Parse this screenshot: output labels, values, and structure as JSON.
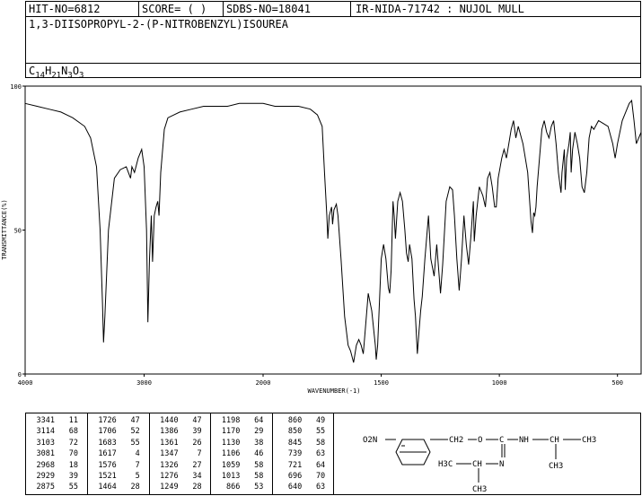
{
  "header": {
    "hit_no": "HIT-NO=6812",
    "score": "SCORE=  (   )",
    "sdbs_no": "SDBS-NO=18041",
    "ir_info": "IR-NIDA-71742 : NUJOL MULL"
  },
  "compound_name": "1,3-DIISOPROPYL-2-(P-NITROBENZYL)ISOUREA",
  "formula": {
    "parts": [
      {
        "t": "C",
        "sub": false
      },
      {
        "t": "14",
        "sub": true
      },
      {
        "t": "H",
        "sub": false
      },
      {
        "t": "21",
        "sub": true
      },
      {
        "t": "N",
        "sub": false
      },
      {
        "t": "3",
        "sub": true
      },
      {
        "t": "O",
        "sub": false
      },
      {
        "t": "3",
        "sub": true
      }
    ]
  },
  "chart_data": {
    "type": "line",
    "xlabel": "WAVENUMBER(-1)",
    "ylabel": "TRANSMITTANCE(%)",
    "xlim": [
      4000,
      400
    ],
    "ylim": [
      0,
      100
    ],
    "x_ticks": [
      4000,
      3000,
      2000,
      1500,
      1000,
      500
    ],
    "y_ticks": [
      0,
      50,
      100
    ],
    "series": [
      {
        "points": [
          [
            4000,
            94
          ],
          [
            3900,
            93
          ],
          [
            3800,
            92
          ],
          [
            3700,
            91
          ],
          [
            3600,
            89
          ],
          [
            3500,
            86
          ],
          [
            3450,
            82
          ],
          [
            3400,
            72
          ],
          [
            3370,
            50
          ],
          [
            3350,
            25
          ],
          [
            3341,
            11
          ],
          [
            3330,
            20
          ],
          [
            3300,
            50
          ],
          [
            3250,
            68
          ],
          [
            3200,
            71
          ],
          [
            3150,
            72
          ],
          [
            3114,
            68
          ],
          [
            3103,
            72
          ],
          [
            3081,
            70
          ],
          [
            3050,
            75
          ],
          [
            3020,
            78
          ],
          [
            3000,
            72
          ],
          [
            2980,
            50
          ],
          [
            2968,
            18
          ],
          [
            2955,
            40
          ],
          [
            2940,
            55
          ],
          [
            2929,
            39
          ],
          [
            2915,
            55
          ],
          [
            2900,
            58
          ],
          [
            2885,
            60
          ],
          [
            2875,
            55
          ],
          [
            2860,
            70
          ],
          [
            2830,
            85
          ],
          [
            2800,
            89
          ],
          [
            2700,
            91
          ],
          [
            2600,
            92
          ],
          [
            2500,
            93
          ],
          [
            2400,
            93
          ],
          [
            2300,
            93
          ],
          [
            2200,
            94
          ],
          [
            2100,
            94
          ],
          [
            2000,
            94
          ],
          [
            1950,
            93
          ],
          [
            1900,
            93
          ],
          [
            1850,
            93
          ],
          [
            1800,
            92
          ],
          [
            1770,
            90
          ],
          [
            1750,
            86
          ],
          [
            1740,
            70
          ],
          [
            1730,
            55
          ],
          [
            1726,
            47
          ],
          [
            1720,
            55
          ],
          [
            1710,
            58
          ],
          [
            1706,
            52
          ],
          [
            1700,
            57
          ],
          [
            1690,
            59
          ],
          [
            1683,
            55
          ],
          [
            1670,
            40
          ],
          [
            1655,
            20
          ],
          [
            1640,
            10
          ],
          [
            1630,
            8
          ],
          [
            1617,
            4
          ],
          [
            1605,
            10
          ],
          [
            1595,
            12
          ],
          [
            1585,
            10
          ],
          [
            1576,
            7
          ],
          [
            1565,
            18
          ],
          [
            1555,
            28
          ],
          [
            1540,
            22
          ],
          [
            1525,
            10
          ],
          [
            1521,
            5
          ],
          [
            1515,
            10
          ],
          [
            1500,
            40
          ],
          [
            1490,
            45
          ],
          [
            1480,
            40
          ],
          [
            1470,
            30
          ],
          [
            1464,
            28
          ],
          [
            1458,
            36
          ],
          [
            1450,
            60
          ],
          [
            1445,
            55
          ],
          [
            1440,
            47
          ],
          [
            1430,
            60
          ],
          [
            1420,
            63
          ],
          [
            1410,
            60
          ],
          [
            1400,
            50
          ],
          [
            1393,
            42
          ],
          [
            1386,
            39
          ],
          [
            1380,
            45
          ],
          [
            1370,
            40
          ],
          [
            1361,
            26
          ],
          [
            1355,
            20
          ],
          [
            1347,
            7
          ],
          [
            1340,
            15
          ],
          [
            1333,
            22
          ],
          [
            1326,
            27
          ],
          [
            1315,
            40
          ],
          [
            1300,
            55
          ],
          [
            1290,
            40
          ],
          [
            1276,
            34
          ],
          [
            1265,
            45
          ],
          [
            1249,
            28
          ],
          [
            1240,
            38
          ],
          [
            1225,
            60
          ],
          [
            1210,
            65
          ],
          [
            1198,
            64
          ],
          [
            1190,
            55
          ],
          [
            1180,
            40
          ],
          [
            1170,
            29
          ],
          [
            1160,
            40
          ],
          [
            1150,
            55
          ],
          [
            1140,
            45
          ],
          [
            1130,
            38
          ],
          [
            1120,
            48
          ],
          [
            1110,
            60
          ],
          [
            1106,
            46
          ],
          [
            1098,
            55
          ],
          [
            1085,
            65
          ],
          [
            1070,
            62
          ],
          [
            1059,
            58
          ],
          [
            1050,
            68
          ],
          [
            1040,
            70
          ],
          [
            1030,
            65
          ],
          [
            1020,
            58
          ],
          [
            1013,
            58
          ],
          [
            1005,
            68
          ],
          [
            990,
            75
          ],
          [
            980,
            78
          ],
          [
            970,
            75
          ],
          [
            960,
            80
          ],
          [
            950,
            85
          ],
          [
            940,
            88
          ],
          [
            930,
            82
          ],
          [
            920,
            86
          ],
          [
            900,
            80
          ],
          [
            880,
            70
          ],
          [
            866,
            53
          ],
          [
            860,
            49
          ],
          [
            855,
            56
          ],
          [
            850,
            55
          ],
          [
            845,
            58
          ],
          [
            840,
            65
          ],
          [
            820,
            85
          ],
          [
            810,
            88
          ],
          [
            800,
            84
          ],
          [
            790,
            82
          ],
          [
            780,
            86
          ],
          [
            770,
            88
          ],
          [
            760,
            80
          ],
          [
            750,
            70
          ],
          [
            739,
            63
          ],
          [
            735,
            70
          ],
          [
            725,
            78
          ],
          [
            721,
            64
          ],
          [
            715,
            75
          ],
          [
            705,
            80
          ],
          [
            700,
            84
          ],
          [
            696,
            70
          ],
          [
            690,
            78
          ],
          [
            680,
            84
          ],
          [
            670,
            80
          ],
          [
            660,
            75
          ],
          [
            650,
            65
          ],
          [
            640,
            63
          ],
          [
            630,
            70
          ],
          [
            620,
            82
          ],
          [
            610,
            86
          ],
          [
            600,
            85
          ],
          [
            580,
            88
          ],
          [
            560,
            87
          ],
          [
            540,
            86
          ],
          [
            520,
            80
          ],
          [
            510,
            75
          ],
          [
            500,
            80
          ],
          [
            480,
            88
          ],
          [
            460,
            92
          ],
          [
            450,
            94
          ],
          [
            440,
            95
          ],
          [
            430,
            88
          ],
          [
            420,
            80
          ],
          [
            400,
            84
          ]
        ]
      }
    ]
  },
  "peaks": [
    [
      [
        "3341",
        "11"
      ],
      [
        "3114",
        "68"
      ],
      [
        "3103",
        "72"
      ],
      [
        "3081",
        "70"
      ],
      [
        "2968",
        "18"
      ],
      [
        "2929",
        "39"
      ],
      [
        "2875",
        "55"
      ]
    ],
    [
      [
        "1726",
        "47"
      ],
      [
        "1706",
        "52"
      ],
      [
        "1683",
        "55"
      ],
      [
        "1617",
        "4"
      ],
      [
        "1576",
        "7"
      ],
      [
        "1521",
        "5"
      ],
      [
        "1464",
        "28"
      ]
    ],
    [
      [
        "1440",
        "47"
      ],
      [
        "1386",
        "39"
      ],
      [
        "1361",
        "26"
      ],
      [
        "1347",
        "7"
      ],
      [
        "1326",
        "27"
      ],
      [
        "1276",
        "34"
      ],
      [
        "1249",
        "28"
      ]
    ],
    [
      [
        "1198",
        "64"
      ],
      [
        "1170",
        "29"
      ],
      [
        "1130",
        "38"
      ],
      [
        "1106",
        "46"
      ],
      [
        "1059",
        "58"
      ],
      [
        "1013",
        "58"
      ],
      [
        "866",
        "53"
      ]
    ],
    [
      [
        "860",
        "49"
      ],
      [
        "850",
        "55"
      ],
      [
        "845",
        "58"
      ],
      [
        "739",
        "63"
      ],
      [
        "721",
        "64"
      ],
      [
        "696",
        "70"
      ],
      [
        "640",
        "63"
      ]
    ]
  ],
  "structure": {
    "no2": "O2N",
    "ch2": "CH2",
    "o": "O",
    "c": "C",
    "nh": "NH",
    "ch_right": "CH",
    "ch3_right_top": "CH3",
    "ch3_right_bottom": "CH3",
    "n": "N",
    "h3c": "H3C",
    "ch_left": "CH",
    "ch3_bottom": "CH3"
  }
}
